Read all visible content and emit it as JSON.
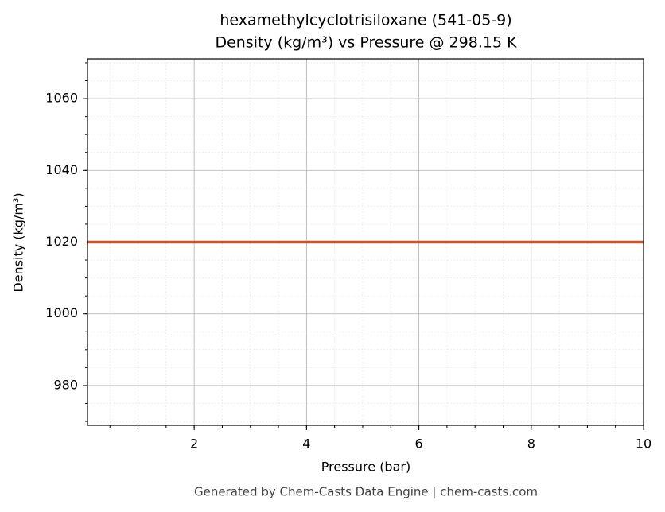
{
  "chart_data": {
    "type": "line",
    "title": "hexamethylcyclotrisiloxane (541-05-9)",
    "subtitle": "Density (kg/m³) vs Pressure @ 298.15 K",
    "x_label": "Pressure (bar)",
    "y_label": "Density (kg/m³)",
    "footer": "Generated by Chem-Casts Data Engine | chem-casts.com",
    "x": [
      0.1,
      2,
      4,
      6,
      8,
      10
    ],
    "series": [
      {
        "name": "Density",
        "color": "#c8552b",
        "values": [
          1020,
          1020,
          1020,
          1020,
          1020,
          1020
        ]
      }
    ],
    "xlim": [
      0.1,
      10
    ],
    "xticks": [
      2,
      4,
      6,
      8,
      10
    ],
    "ylim": [
      968.9,
      1071.1
    ],
    "yticks": [
      980,
      1000,
      1020,
      1040,
      1060
    ],
    "grid": true,
    "minor_grid": true
  }
}
